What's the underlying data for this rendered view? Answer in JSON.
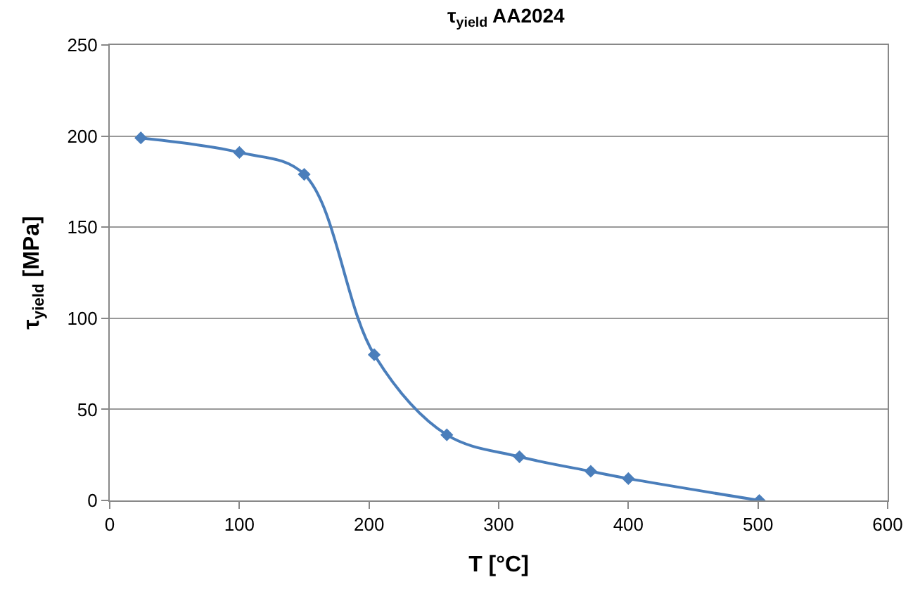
{
  "chart_data": {
    "type": "line",
    "title": "τ$_{yield}$ AA2024",
    "xlabel": "T [°C]",
    "ylabel": "τ$_{yield}$ [MPa]",
    "x": [
      24,
      100,
      150,
      204,
      260,
      316,
      371,
      400,
      501
    ],
    "series": [
      {
        "color": "#4a7ebb",
        "values": [
          199,
          191,
          179,
          80,
          36,
          24,
          16,
          12,
          0
        ]
      }
    ],
    "xlim": [
      0,
      600
    ],
    "xticks": [
      0,
      100,
      200,
      300,
      400,
      500,
      600
    ],
    "ylim": [
      0,
      250
    ],
    "yticks": [
      0,
      50,
      100,
      150,
      200,
      250
    ],
    "grid": "y",
    "legend": false,
    "marker": "diamond",
    "line_style": "solid"
  }
}
